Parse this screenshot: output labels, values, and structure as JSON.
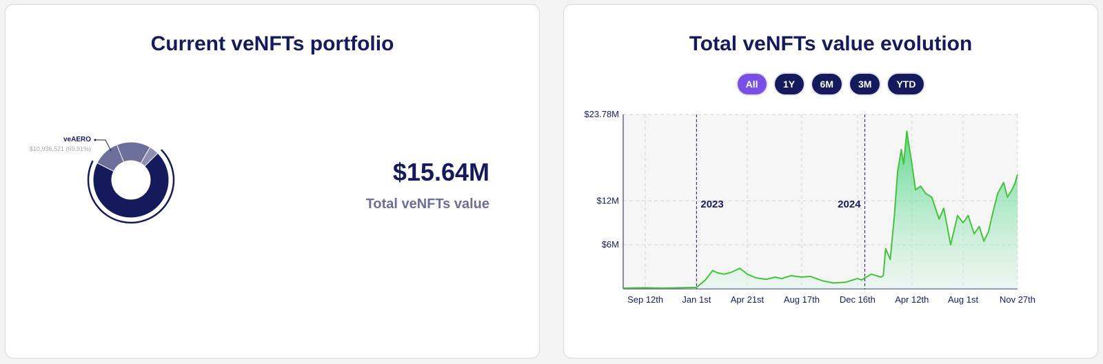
{
  "portfolio": {
    "title": "Current veNFTs portfolio",
    "total_value": "$15.64M",
    "total_label": "Total veNFTs value",
    "chart_data": {
      "type": "pie",
      "labels": [
        "veAERO",
        "",
        "",
        ""
      ],
      "values": [
        69.91,
        11.5,
        14.5,
        4.09
      ],
      "colors": [
        "#151a5c",
        "#6b6f99",
        "#6b6f99",
        "#8d90b4"
      ],
      "callout": {
        "label": "veAERO",
        "value_text": "$10,936,521 (69.91%)"
      }
    }
  },
  "evolution": {
    "title": "Total veNFTs value evolution",
    "ranges": [
      {
        "label": "All",
        "active": true
      },
      {
        "label": "1Y",
        "active": false
      },
      {
        "label": "6M",
        "active": false
      },
      {
        "label": "3M",
        "active": false
      },
      {
        "label": "YTD",
        "active": false
      }
    ],
    "chart_data": {
      "type": "area",
      "xlabel": "",
      "ylabel": "",
      "ylim": [
        0,
        23.78
      ],
      "y_ticks": [
        {
          "value": 23.78,
          "label": "$23.78M"
        },
        {
          "value": 12,
          "label": "$12M"
        },
        {
          "value": 6,
          "label": "$6M"
        }
      ],
      "x_ticks": [
        {
          "date": "2022-09-12",
          "label": "Sep 12th"
        },
        {
          "date": "2023-01-01",
          "label": "Jan 1st"
        },
        {
          "date": "2023-04-21",
          "label": "Apr 21st"
        },
        {
          "date": "2023-08-17",
          "label": "Aug 17th"
        },
        {
          "date": "2023-12-16",
          "label": "Dec 16th"
        },
        {
          "date": "2024-04-12",
          "label": "Apr 12th"
        },
        {
          "date": "2024-08-01",
          "label": "Aug 1st"
        },
        {
          "date": "2024-11-27",
          "label": "Nov 27th"
        }
      ],
      "annotations": [
        {
          "date": "2023-01-01",
          "label": "2023"
        },
        {
          "date": "2024-01-01",
          "label": "2024"
        }
      ],
      "line_color": "#44c23c",
      "grid": true,
      "series": [
        {
          "x": [
            "2022-07-26",
            "2022-09-12",
            "2022-10-20",
            "2022-11-27",
            "2023-01-01",
            "2023-01-20",
            "2023-02-05",
            "2023-02-15",
            "2023-03-01",
            "2023-03-15",
            "2023-04-05",
            "2023-04-21",
            "2023-05-10",
            "2023-06-01",
            "2023-06-20",
            "2023-07-05",
            "2023-07-25",
            "2023-08-17",
            "2023-09-05",
            "2023-10-01",
            "2023-10-25",
            "2023-11-20",
            "2023-12-16",
            "2023-12-25",
            "2024-01-01",
            "2024-01-15",
            "2024-02-05",
            "2024-02-10",
            "2024-02-15",
            "2024-02-25",
            "2024-03-05",
            "2024-03-12",
            "2024-03-20",
            "2024-03-25",
            "2024-04-01",
            "2024-04-12",
            "2024-04-20",
            "2024-05-01",
            "2024-05-12",
            "2024-05-25",
            "2024-06-10",
            "2024-06-20",
            "2024-07-05",
            "2024-07-20",
            "2024-08-01",
            "2024-08-12",
            "2024-08-25",
            "2024-09-05",
            "2024-09-15",
            "2024-09-25",
            "2024-10-05",
            "2024-10-15",
            "2024-10-28",
            "2024-11-05",
            "2024-11-15",
            "2024-11-22",
            "2024-11-27"
          ],
          "y": [
            0.1,
            0.15,
            0.1,
            0.15,
            0.2,
            1.2,
            2.5,
            2.2,
            2.0,
            2.2,
            2.8,
            2.0,
            1.5,
            1.3,
            1.6,
            1.4,
            1.8,
            1.6,
            1.7,
            1.1,
            0.8,
            0.9,
            1.4,
            1.2,
            1.5,
            2.0,
            1.6,
            1.8,
            5.5,
            4.0,
            10.0,
            16.0,
            19.0,
            17.0,
            21.5,
            17.0,
            13.5,
            14.0,
            13.0,
            12.5,
            9.5,
            11.0,
            6.0,
            10.0,
            9.0,
            10.0,
            7.5,
            8.5,
            6.5,
            7.8,
            10.5,
            13.0,
            14.5,
            12.5,
            13.5,
            14.5,
            15.6
          ]
        }
      ]
    }
  }
}
